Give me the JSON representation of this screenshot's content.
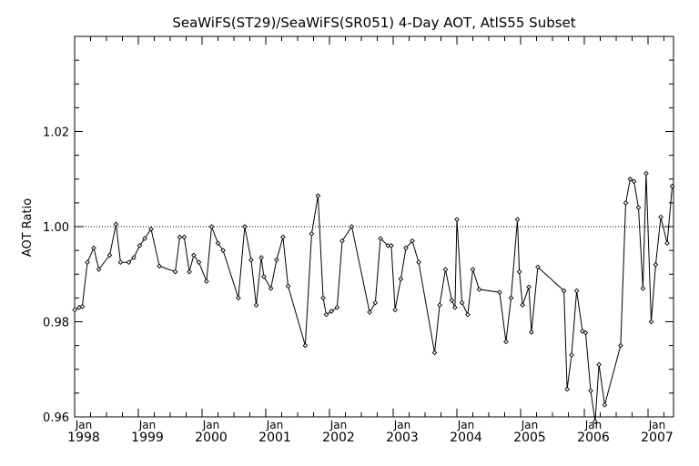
{
  "chart_data": {
    "type": "line",
    "title": "SeaWiFS(ST29)/SeaWiFS(SR051) 4-Day AOT, AtlS55 Subset",
    "xlabel": "",
    "ylabel": "AOT Ratio",
    "ylim": [
      0.96,
      1.04
    ],
    "xlim": [
      1998.0,
      2007.4
    ],
    "yticks": [
      "0.96",
      "0.98",
      "1.00",
      "1.02"
    ],
    "xticks": [
      {
        "month": "Jan",
        "year": "1998"
      },
      {
        "month": "Jan",
        "year": "1999"
      },
      {
        "month": "Jan",
        "year": "2000"
      },
      {
        "month": "Jan",
        "year": "2001"
      },
      {
        "month": "Jan",
        "year": "2002"
      },
      {
        "month": "Jan",
        "year": "2003"
      },
      {
        "month": "Jan",
        "year": "2004"
      },
      {
        "month": "Jan",
        "year": "2005"
      },
      {
        "month": "Jan",
        "year": "2006"
      },
      {
        "month": "Jan",
        "year": "2007"
      }
    ],
    "reference_line": {
      "y": 1.0,
      "style": "dotted"
    },
    "grid": false,
    "marker": "diamond",
    "series": [
      {
        "x": [
          1998.0,
          1998.07,
          1998.12,
          1998.2,
          1998.3,
          1998.38,
          1998.55,
          1998.65,
          1998.72,
          1998.85,
          1998.93,
          1999.02,
          1999.1,
          1999.2,
          1999.33,
          1999.58,
          1999.65,
          1999.72,
          1999.8,
          1999.87,
          1999.95,
          2000.07,
          2000.15,
          2000.25,
          2000.33,
          2000.57,
          2000.67,
          2000.77,
          2000.85,
          2000.93,
          2000.97,
          2001.08,
          2001.17,
          2001.27,
          2001.35,
          2001.62,
          2001.72,
          2001.82,
          2001.9,
          2001.95,
          2002.03,
          2002.12,
          2002.2,
          2002.35,
          2002.63,
          2002.72,
          2002.8,
          2002.92,
          2002.97,
          2003.03,
          2003.12,
          2003.2,
          2003.3,
          2003.4,
          2003.65,
          2003.73,
          2003.82,
          2003.92,
          2003.97,
          2004.0,
          2004.08,
          2004.17,
          2004.25,
          2004.35,
          2004.67,
          2004.77,
          2004.85,
          2004.95,
          2004.98,
          2005.03,
          2005.13,
          2005.17,
          2005.27,
          2005.68,
          2005.73,
          2005.8,
          2005.88,
          2005.97,
          2006.02,
          2006.1,
          2006.17,
          2006.23,
          2006.32,
          2006.57,
          2006.65,
          2006.72,
          2006.78,
          2006.85,
          2006.92,
          2006.97,
          2007.05,
          2007.12,
          2007.2,
          2007.3,
          2007.38
        ],
        "values": [
          0.9825,
          0.983,
          0.9832,
          0.9925,
          0.9955,
          0.991,
          0.994,
          1.0005,
          0.9925,
          0.9925,
          0.9935,
          0.996,
          0.9975,
          0.9995,
          0.9917,
          0.9905,
          0.9978,
          0.9978,
          0.9905,
          0.994,
          0.9925,
          0.9885,
          1.0,
          0.9965,
          0.995,
          0.985,
          1.0,
          0.993,
          0.9835,
          0.9935,
          0.9895,
          0.987,
          0.993,
          0.9978,
          0.9875,
          0.975,
          0.9985,
          1.0065,
          0.985,
          0.9815,
          0.9822,
          0.983,
          0.997,
          1.0,
          0.982,
          0.984,
          0.9975,
          0.996,
          0.996,
          0.9825,
          0.989,
          0.9955,
          0.997,
          0.9925,
          0.9735,
          0.9835,
          0.991,
          0.9845,
          0.983,
          1.0015,
          0.984,
          0.9815,
          0.991,
          0.9868,
          0.9862,
          0.9758,
          0.985,
          1.0015,
          0.9905,
          0.9835,
          0.9873,
          0.9778,
          0.9915,
          0.9865,
          0.9658,
          0.973,
          0.9865,
          0.978,
          0.9777,
          0.9655,
          0.959,
          0.971,
          0.9625,
          0.975,
          1.005,
          1.01,
          1.0095,
          1.004,
          0.987,
          1.0112,
          0.98,
          0.992,
          1.002,
          0.9965,
          1.0085
        ]
      }
    ]
  }
}
